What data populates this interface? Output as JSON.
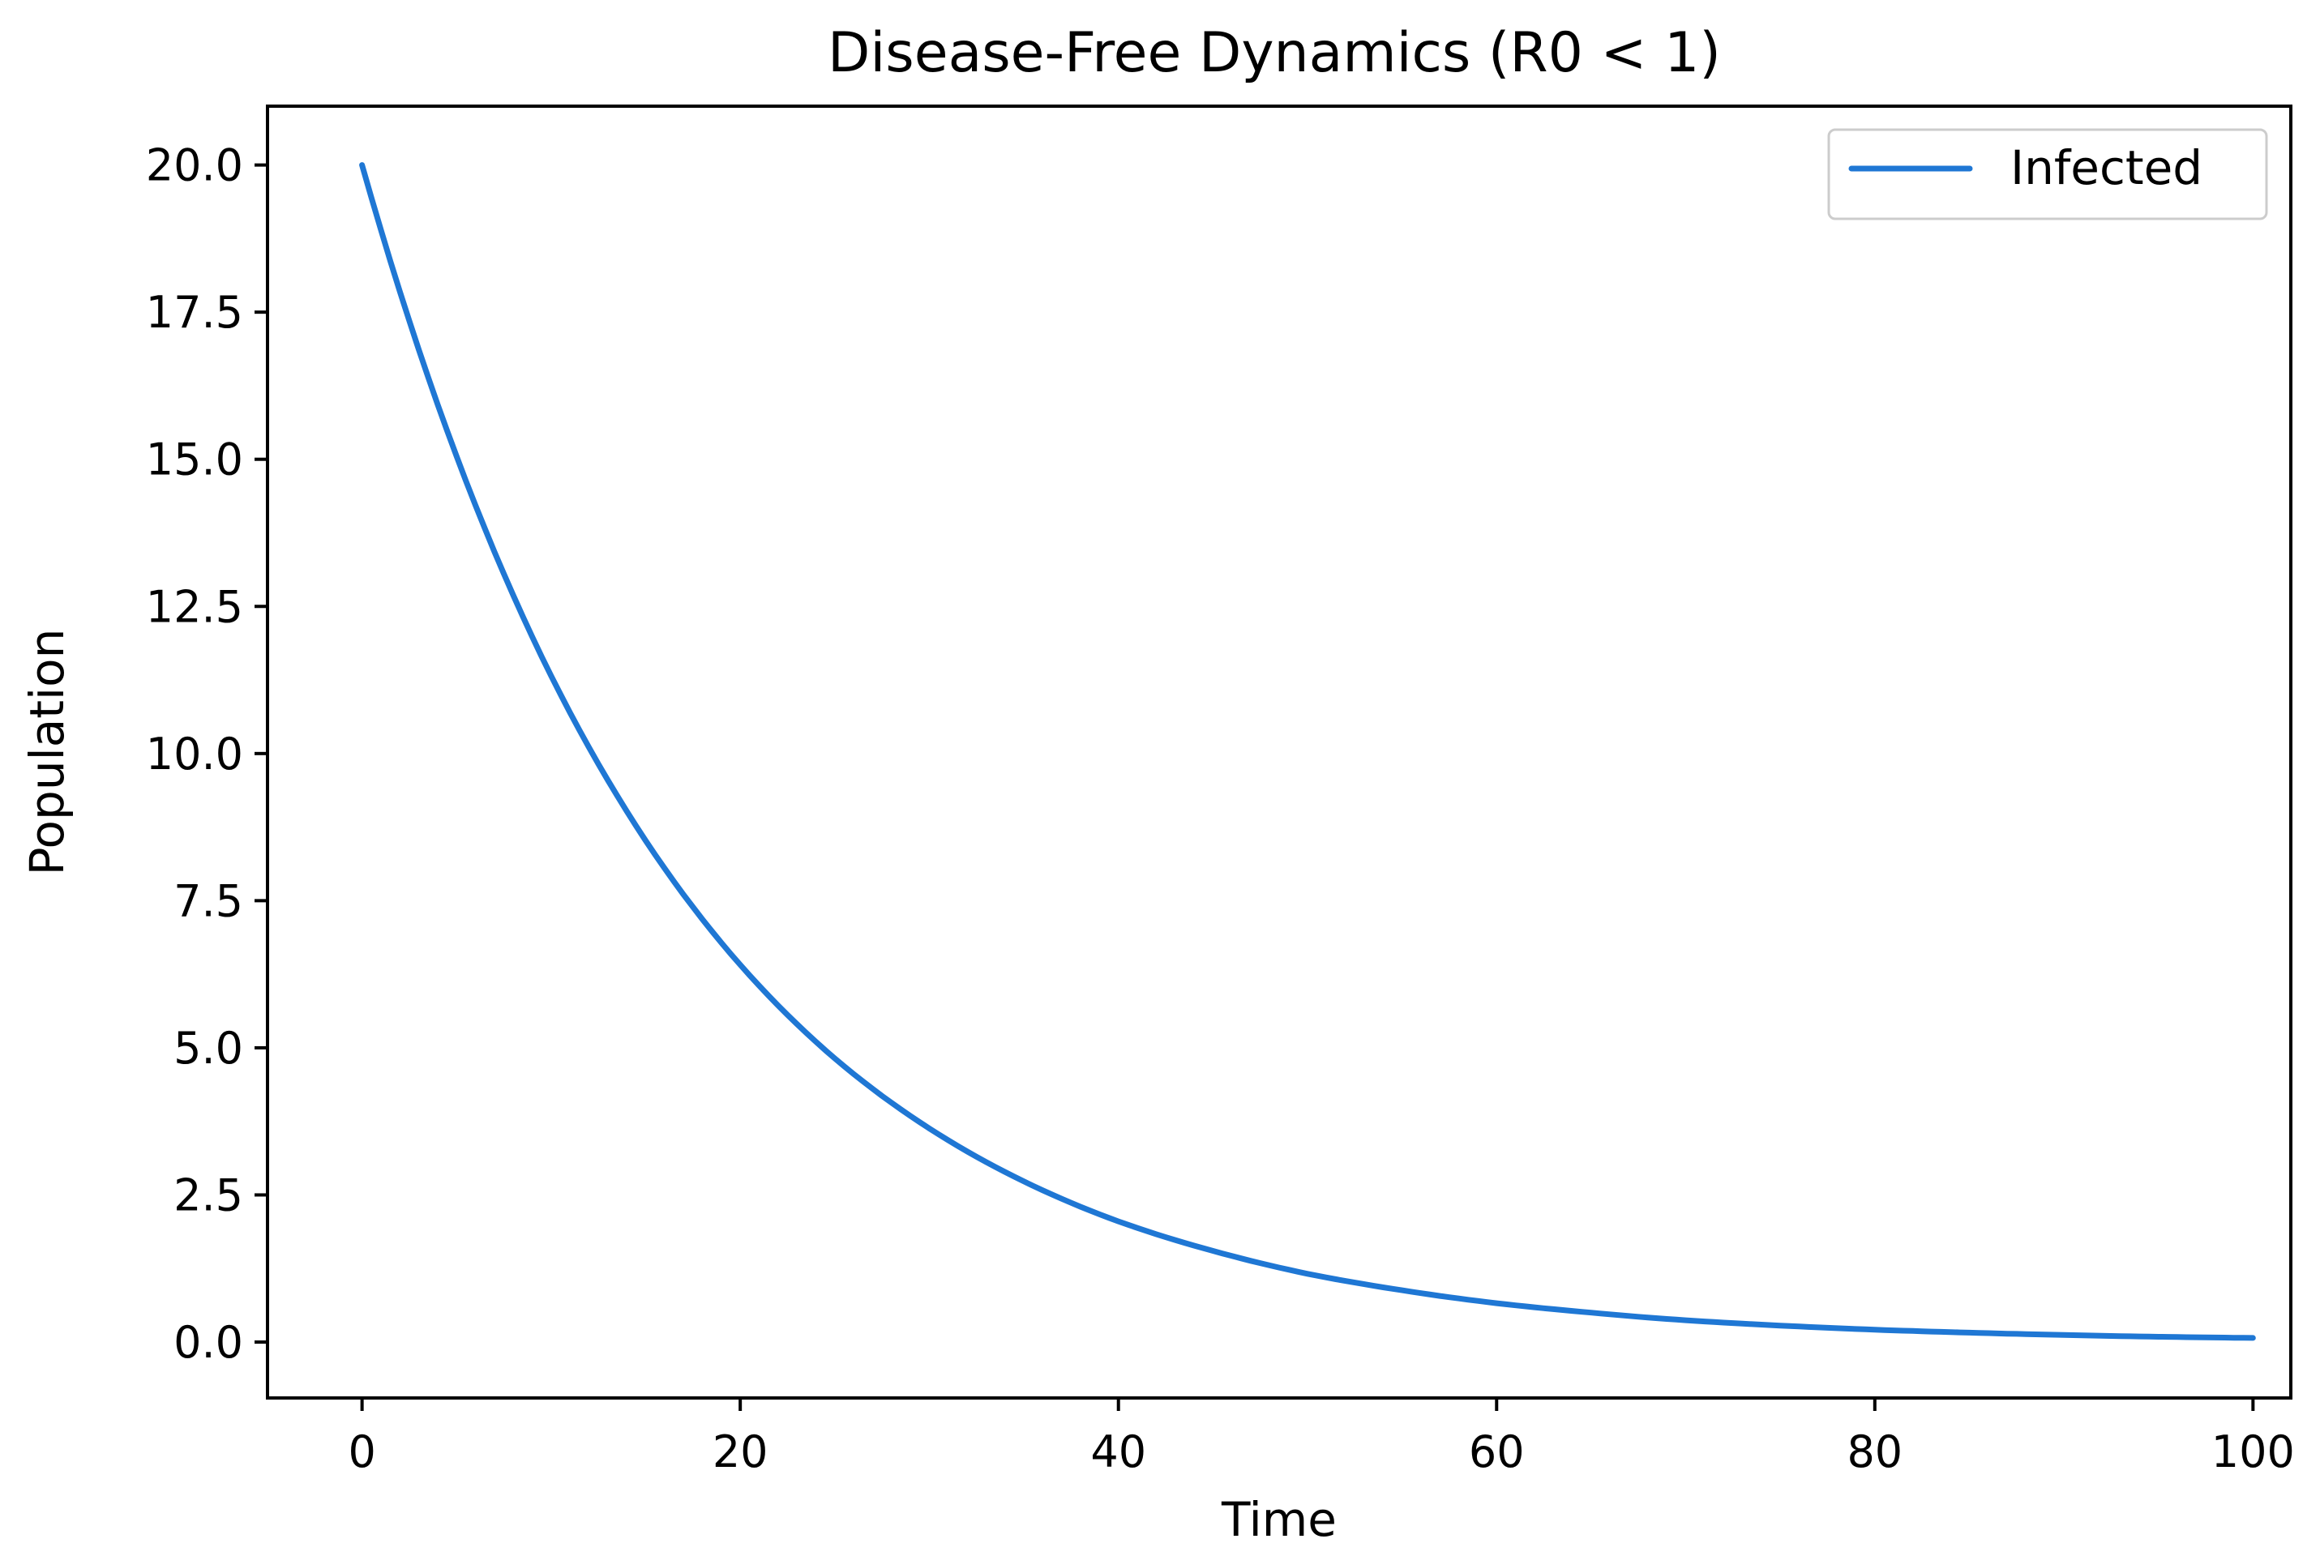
{
  "chart_data": {
    "type": "line",
    "title": "Disease-Free Dynamics (R0 < 1)",
    "xlabel": "Time",
    "ylabel": "Population",
    "xlim": [
      -5,
      102
    ],
    "ylim": [
      -0.95,
      21.0
    ],
    "x_ticks": [
      0,
      20,
      40,
      60,
      80,
      100
    ],
    "x_tick_labels": [
      "0",
      "20",
      "40",
      "60",
      "80",
      "100"
    ],
    "y_ticks": [
      0,
      2.5,
      5,
      7.5,
      10,
      12.5,
      15,
      17.5,
      20
    ],
    "y_tick_labels": [
      "0.0",
      "2.5",
      "5.0",
      "7.5",
      "10.0",
      "12.5",
      "15.0",
      "17.5",
      "20.0"
    ],
    "grid": false,
    "legend_position": "top-right",
    "series": [
      {
        "name": "Infected",
        "color": "#1f77d4",
        "x": [
          0,
          5,
          10,
          15,
          20,
          25,
          30,
          35,
          40,
          45,
          50,
          55,
          60,
          65,
          70,
          75,
          80,
          85,
          90,
          95,
          100
        ],
        "y": [
          20.0,
          15.05,
          11.32,
          8.52,
          6.41,
          4.82,
          3.63,
          2.73,
          2.05,
          1.55,
          1.16,
          0.88,
          0.66,
          0.5,
          0.37,
          0.28,
          0.21,
          0.16,
          0.12,
          0.09,
          0.07
        ]
      }
    ]
  }
}
